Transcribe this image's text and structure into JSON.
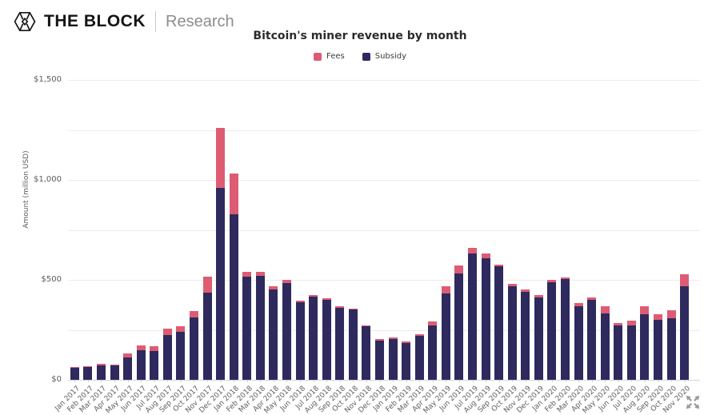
{
  "header": {
    "brand": "THE BLOCK",
    "subbrand": "Research"
  },
  "chart_data": {
    "type": "bar",
    "stacked": true,
    "title": "Bitcoin's miner revenue by month",
    "ylabel": "Amount (million USD)",
    "ylim": [
      0,
      1500
    ],
    "yticks": [
      0,
      500,
      1000,
      1500
    ],
    "ytick_labels": [
      "$0",
      "$500",
      "$1,000",
      "$1,500"
    ],
    "grid_interval": 250,
    "legend": [
      {
        "label": "Fees",
        "color": "#dd5c73"
      },
      {
        "label": "Subsidy",
        "color": "#2e2a5e"
      }
    ],
    "categories": [
      "Jan 2017",
      "Feb 2017",
      "Mar 2017",
      "Apr 2017",
      "May 2017",
      "Jun 2017",
      "Jul 2017",
      "Aug 2017",
      "Sep 2017",
      "Oct 2017",
      "Nov 2017",
      "Dec 2017",
      "Jan 2018",
      "Feb 2018",
      "Mar 2018",
      "Apr 2018",
      "May 2018",
      "Jun 2018",
      "Jul 2018",
      "Aug 2018",
      "Sep 2018",
      "Oct 2018",
      "Nov 2018",
      "Dec 2018",
      "Jan 2019",
      "Feb 2019",
      "Mar 2019",
      "Apr 2019",
      "May 2019",
      "Jun 2019",
      "Jul 2019",
      "Aug 2019",
      "Sep 2019",
      "Oct 2019",
      "Nov 2019",
      "Dec 2019",
      "Jan 2020",
      "Feb 2020",
      "Mar 2020",
      "Apr 2020",
      "May 2020",
      "Jun 2020",
      "Jul 2020",
      "Aug 2020",
      "Sep 2020",
      "Oct 2020",
      "Nov 2020"
    ],
    "series": [
      {
        "name": "Subsidy",
        "color": "#2e2a5e",
        "values": [
          60,
          63,
          74,
          71,
          112,
          147,
          143,
          223,
          240,
          313,
          435,
          960,
          827,
          516,
          520,
          453,
          484,
          390,
          415,
          400,
          361,
          351,
          268,
          196,
          203,
          183,
          219,
          273,
          433,
          533,
          633,
          607,
          567,
          467,
          440,
          413,
          488,
          503,
          369,
          400,
          333,
          271,
          273,
          327,
          300,
          307,
          467
        ]
      },
      {
        "name": "Fees",
        "color": "#dd5c73",
        "values": [
          3,
          4,
          6,
          6,
          20,
          26,
          24,
          33,
          27,
          30,
          80,
          300,
          206,
          24,
          20,
          14,
          16,
          7,
          8,
          7,
          6,
          5,
          5,
          8,
          8,
          8,
          8,
          20,
          34,
          40,
          27,
          24,
          10,
          13,
          13,
          11,
          12,
          10,
          14,
          13,
          34,
          12,
          23,
          40,
          29,
          42,
          60
        ]
      }
    ]
  }
}
